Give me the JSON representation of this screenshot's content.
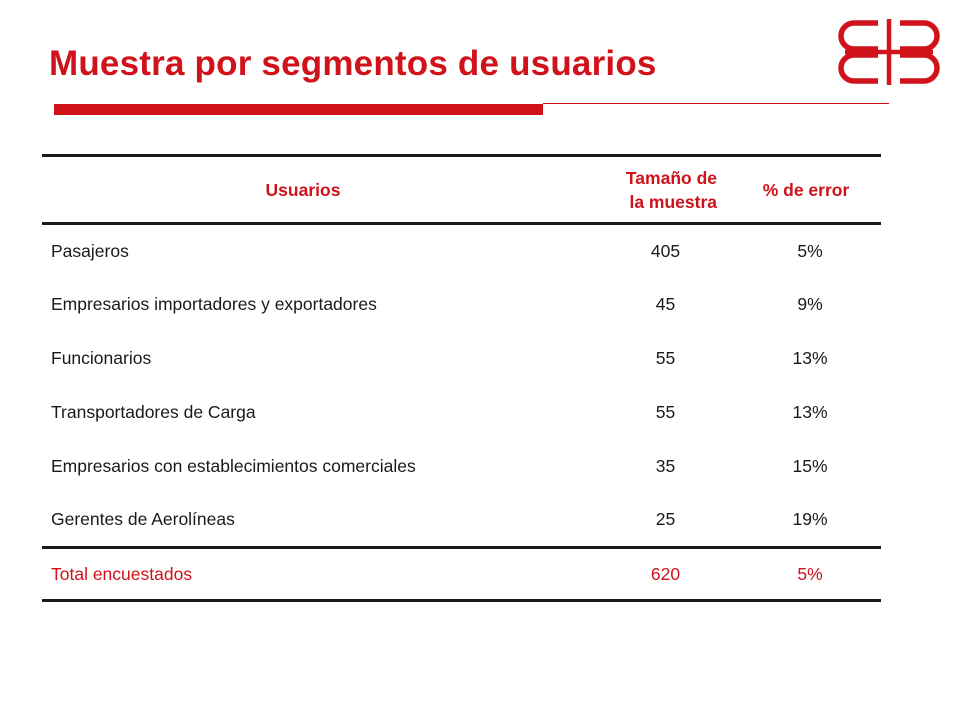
{
  "slide": {
    "title": "Muestra por segmentos de usuarios"
  },
  "colors": {
    "accent": "#d0121b",
    "rule": "#1a1a1a",
    "text": "#1a1a1a"
  },
  "logo": {
    "icon": "ccb-logo-icon"
  },
  "table": {
    "headers": {
      "users": "Usuarios",
      "sample_size_line1": "Tamaño de",
      "sample_size_line2": "la muestra",
      "error": "% de error"
    },
    "rows": [
      {
        "label": "Pasajeros",
        "size": "405",
        "error": "5%"
      },
      {
        "label": "Empresarios importadores y exportadores",
        "size": "45",
        "error": "9%"
      },
      {
        "label": "Funcionarios",
        "size": "55",
        "error": "13%"
      },
      {
        "label": "Transportadores de Carga",
        "size": "55",
        "error": "13%"
      },
      {
        "label": "Empresarios con establecimientos comerciales",
        "size": "35",
        "error": "15%"
      },
      {
        "label": "Gerentes de Aerolíneas",
        "size": "25",
        "error": "19%"
      }
    ],
    "total": {
      "label": "Total encuestados",
      "size": "620",
      "error": "5%"
    }
  }
}
